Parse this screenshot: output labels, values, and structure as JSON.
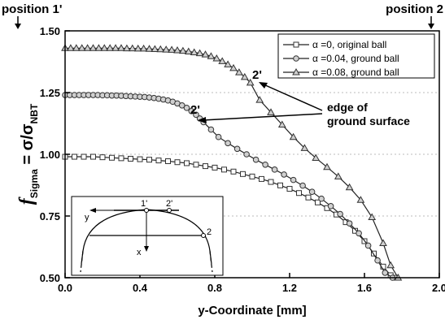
{
  "chart_data": {
    "type": "line",
    "xlabel": "y-Coordinate [mm]",
    "ylabel_main": "f",
    "ylabel_sub": "Sigma",
    "ylabel_eq": " = σ/σ",
    "ylabel_eq_sub": "NBT",
    "xlim": [
      0.0,
      2.0
    ],
    "ylim": [
      0.5,
      1.5
    ],
    "xticks": [
      "0.0",
      "0.4",
      "0.8",
      "1.2",
      "1.6",
      "2.0"
    ],
    "xtick_values": [
      0.0,
      0.4,
      0.8,
      1.2,
      1.6,
      2.0
    ],
    "yticks": [
      "0.50",
      "0.75",
      "1.00",
      "1.25",
      "1.50"
    ],
    "ytick_values": [
      0.5,
      0.75,
      1.0,
      1.25,
      1.5
    ],
    "grid": "horizontal dotted",
    "legend_position": "top-right",
    "top_labels": {
      "left": "position 1'",
      "right": "position 2"
    },
    "series": [
      {
        "name": "α =0,     original ball",
        "marker": "square",
        "x": [
          0.0,
          0.05,
          0.1,
          0.15,
          0.2,
          0.25,
          0.3,
          0.35,
          0.4,
          0.45,
          0.5,
          0.55,
          0.6,
          0.65,
          0.7,
          0.75,
          0.8,
          0.85,
          0.9,
          0.95,
          1.0,
          1.05,
          1.1,
          1.15,
          1.2,
          1.25,
          1.3,
          1.35,
          1.4,
          1.45,
          1.5,
          1.55,
          1.6,
          1.65,
          1.7,
          1.74,
          1.77
        ],
        "y": [
          0.99,
          0.99,
          0.99,
          0.99,
          0.988,
          0.986,
          0.984,
          0.982,
          0.98,
          0.978,
          0.975,
          0.972,
          0.968,
          0.964,
          0.958,
          0.952,
          0.946,
          0.938,
          0.93,
          0.92,
          0.91,
          0.9,
          0.888,
          0.874,
          0.86,
          0.843,
          0.825,
          0.805,
          0.782,
          0.756,
          0.725,
          0.69,
          0.648,
          0.598,
          0.545,
          0.51,
          0.5
        ]
      },
      {
        "name": "α =0.04, ground ball",
        "marker": "circle",
        "x": [
          0.0,
          0.025,
          0.05,
          0.075,
          0.1,
          0.125,
          0.15,
          0.175,
          0.2,
          0.225,
          0.25,
          0.275,
          0.3,
          0.325,
          0.35,
          0.375,
          0.4,
          0.425,
          0.45,
          0.475,
          0.5,
          0.525,
          0.55,
          0.575,
          0.6,
          0.625,
          0.65,
          0.675,
          0.7,
          0.72,
          0.74,
          0.78,
          0.82,
          0.87,
          0.92,
          0.97,
          1.02,
          1.07,
          1.12,
          1.17,
          1.22,
          1.27,
          1.32,
          1.37,
          1.42,
          1.47,
          1.52,
          1.57,
          1.62,
          1.67,
          1.71,
          1.75
        ],
        "y": [
          1.24,
          1.24,
          1.24,
          1.24,
          1.24,
          1.24,
          1.24,
          1.24,
          1.239,
          1.239,
          1.238,
          1.238,
          1.237,
          1.236,
          1.235,
          1.234,
          1.233,
          1.232,
          1.23,
          1.228,
          1.225,
          1.222,
          1.218,
          1.213,
          1.206,
          1.198,
          1.188,
          1.175,
          1.16,
          1.145,
          1.13,
          1.1,
          1.07,
          1.045,
          1.022,
          1.0,
          0.978,
          0.958,
          0.938,
          0.918,
          0.896,
          0.873,
          0.848,
          0.82,
          0.79,
          0.758,
          0.72,
          0.68,
          0.63,
          0.57,
          0.52,
          0.5
        ]
      },
      {
        "name": "α =0.08, ground ball",
        "marker": "triangle",
        "x": [
          0.0,
          0.03,
          0.06,
          0.09,
          0.12,
          0.15,
          0.18,
          0.21,
          0.24,
          0.27,
          0.3,
          0.33,
          0.36,
          0.39,
          0.42,
          0.45,
          0.48,
          0.51,
          0.54,
          0.57,
          0.6,
          0.63,
          0.66,
          0.69,
          0.72,
          0.75,
          0.78,
          0.81,
          0.84,
          0.87,
          0.9,
          0.93,
          0.96,
          0.99,
          1.04,
          1.1,
          1.16,
          1.22,
          1.28,
          1.34,
          1.4,
          1.46,
          1.52,
          1.58,
          1.64,
          1.7,
          1.74,
          1.78
        ],
        "y": [
          1.43,
          1.43,
          1.43,
          1.43,
          1.43,
          1.43,
          1.43,
          1.43,
          1.43,
          1.43,
          1.43,
          1.429,
          1.429,
          1.428,
          1.428,
          1.427,
          1.426,
          1.425,
          1.424,
          1.423,
          1.421,
          1.419,
          1.416,
          1.413,
          1.409,
          1.404,
          1.397,
          1.388,
          1.377,
          1.364,
          1.349,
          1.332,
          1.313,
          1.29,
          1.22,
          1.17,
          1.12,
          1.07,
          1.025,
          0.985,
          0.948,
          0.91,
          0.866,
          0.815,
          0.745,
          0.64,
          0.55,
          0.5
        ]
      }
    ],
    "annotations": {
      "label_2prime_a": "2'",
      "label_2prime_b": "2'",
      "edge_text_line1": "edge of",
      "edge_text_line2": "ground surface"
    },
    "inset": {
      "label_1prime": "1'",
      "label_2prime": "2'",
      "label_2": "2",
      "label_y": "y",
      "label_x": "x"
    }
  }
}
